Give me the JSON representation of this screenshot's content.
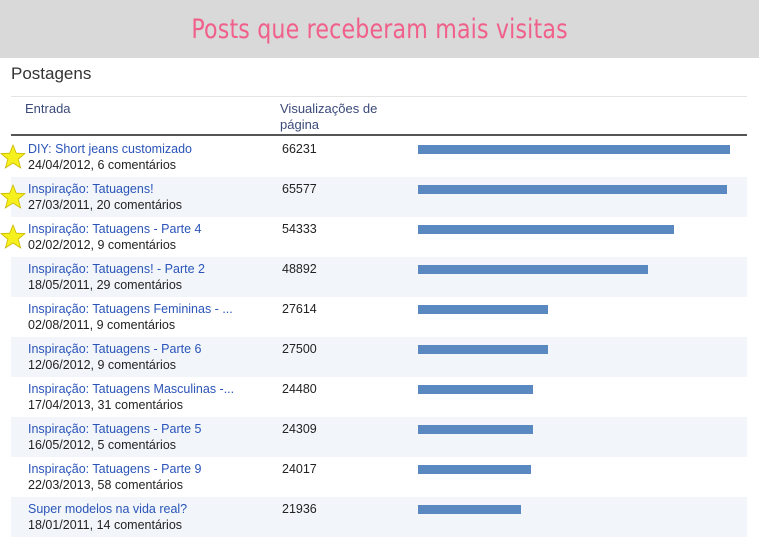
{
  "banner": {
    "title": "Posts que receberam mais visitas"
  },
  "section": {
    "title": "Postagens"
  },
  "table": {
    "headers": {
      "entry": "Entrada",
      "views": "Visualizações de página"
    },
    "max_views": 66231,
    "rows": [
      {
        "title": "DIY: Short jeans customizado",
        "meta": "24/04/2012, 6 comentários",
        "views": "66231",
        "starred": true
      },
      {
        "title": "Inspiração: Tatuagens!",
        "meta": "27/03/2011, 20 comentários",
        "views": "65577",
        "starred": true
      },
      {
        "title": "Inspiração: Tatuagens - Parte 4",
        "meta": "02/02/2012, 9 comentários",
        "views": "54333",
        "starred": true
      },
      {
        "title": "Inspiração: Tatuagens! - Parte 2",
        "meta": "18/05/2011, 29 comentários",
        "views": "48892",
        "starred": false
      },
      {
        "title": "Inspiração: Tatuagens Femininas - ...",
        "meta": "02/08/2011, 9 comentários",
        "views": "27614",
        "starred": false
      },
      {
        "title": "Inspiração: Tatuagens - Parte 6",
        "meta": "12/06/2012, 9 comentários",
        "views": "27500",
        "starred": false
      },
      {
        "title": "Inspiração: Tatuagens Masculinas -...",
        "meta": "17/04/2013, 31 comentários",
        "views": "24480",
        "starred": false
      },
      {
        "title": "Inspiração: Tatuagens - Parte 5",
        "meta": "16/05/2012, 5 comentários",
        "views": "24309",
        "starred": false
      },
      {
        "title": "Inspiração: Tatuagens - Parte 9",
        "meta": "22/03/2013, 58 comentários",
        "views": "24017",
        "starred": false
      },
      {
        "title": "Super modelos na vida real?",
        "meta": "18/01/2011, 14 comentários",
        "views": "21936",
        "starred": false
      }
    ]
  },
  "colors": {
    "banner_text": "#f0608a",
    "link": "#2a54b8",
    "bar": "#5a88c0",
    "star": "#f6f01e"
  }
}
